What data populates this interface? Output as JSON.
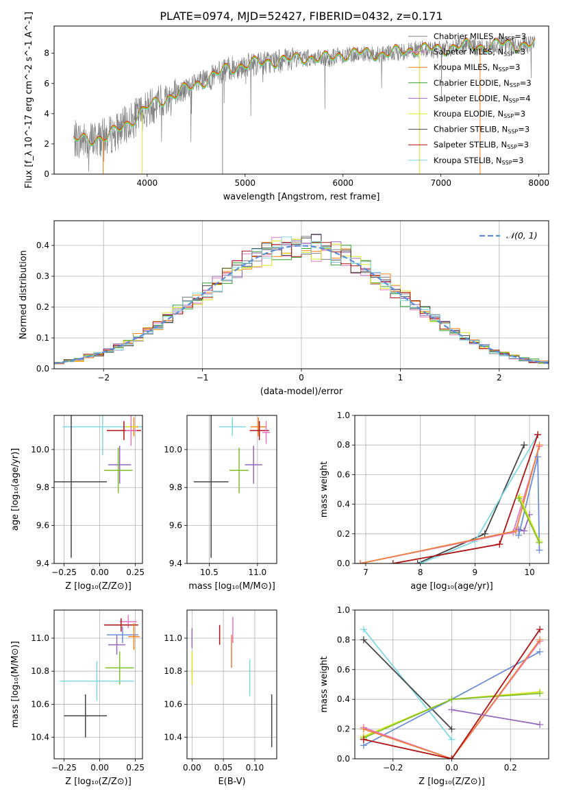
{
  "figure": {
    "title": "PLATE=0974, MJD=52427, FIBERID=0432, z=0.171"
  },
  "colors": {
    "chabrier_miles": "#808080",
    "salpeter_miles": "#e377c2",
    "kroupa_miles": "#ff7f0e",
    "chabrier_elodie": "#2ca02c",
    "salpeter_elodie": "#9467bd",
    "kroupa_elodie": "#dbe31c",
    "chabrier_stelib": "#444444",
    "salpeter_stelib": "#b01010",
    "kroupa_stelib": "#7fd8e0",
    "blue_model": "#6b8dd6",
    "green_model": "#7fbf2a",
    "orange_model": "#f07f3a"
  },
  "chart_data": [
    {
      "type": "line",
      "id": "spectrum",
      "xlabel": "wavelength [Angstrom, rest frame]",
      "ylabel": "Flux [f_λ 10^-17 erg cm^-2 s^-1 A^-1]",
      "xlim": [
        3050,
        8100
      ],
      "ylim": [
        0,
        9.8
      ],
      "xticks": [
        4000,
        5000,
        6000,
        7000,
        8000
      ],
      "yticks": [
        0,
        2,
        4,
        6,
        8
      ],
      "legend_position": "top-right",
      "legend": [
        {
          "label": "Chabrier MILES, N",
          "sub": "SSP",
          "suffix": "=3",
          "color": "#808080"
        },
        {
          "label": "Salpeter MILES, N",
          "sub": "SSP",
          "suffix": "=3",
          "color": "#e377c2"
        },
        {
          "label": "Kroupa MILES, N",
          "sub": "SSP",
          "suffix": "=3",
          "color": "#ff7f0e"
        },
        {
          "label": "Chabrier ELODIE, N",
          "sub": "SSP",
          "suffix": "=3",
          "color": "#2ca02c"
        },
        {
          "label": "Salpeter ELODIE, N",
          "sub": "SSP",
          "suffix": "=4",
          "color": "#9467bd"
        },
        {
          "label": "Kroupa ELODIE, N",
          "sub": "SSP",
          "suffix": "=3",
          "color": "#dbe31c"
        },
        {
          "label": "Chabrier STELIB, N",
          "sub": "SSP",
          "suffix": "=3",
          "color": "#444444"
        },
        {
          "label": "Salpeter STELIB, N",
          "sub": "SSP",
          "suffix": "=3",
          "color": "#b01010"
        },
        {
          "label": "Kroupa STELIB, N",
          "sub": "SSP",
          "suffix": "=3",
          "color": "#7fd8e0"
        }
      ],
      "continuum": [
        [
          3250,
          2.3
        ],
        [
          3400,
          2.2
        ],
        [
          3600,
          2.5
        ],
        [
          3800,
          3.3
        ],
        [
          4000,
          4.4
        ],
        [
          4200,
          5.0
        ],
        [
          4400,
          5.6
        ],
        [
          4600,
          6.2
        ],
        [
          4800,
          6.9
        ],
        [
          5000,
          7.2
        ],
        [
          5200,
          7.4
        ],
        [
          5400,
          7.5
        ],
        [
          5600,
          7.7
        ],
        [
          5800,
          7.6
        ],
        [
          6000,
          7.9
        ],
        [
          6200,
          8.0
        ],
        [
          6400,
          7.9
        ],
        [
          6600,
          8.1
        ],
        [
          6800,
          8.3
        ],
        [
          7000,
          8.2
        ],
        [
          7200,
          8.5
        ],
        [
          7400,
          8.4
        ],
        [
          7600,
          8.6
        ],
        [
          7800,
          8.5
        ],
        [
          7960,
          8.6
        ]
      ]
    },
    {
      "type": "line",
      "id": "residuals",
      "xlabel": "(data-model)/error",
      "ylabel": "Normed distribution",
      "xlim": [
        -2.5,
        2.5
      ],
      "ylim": [
        0,
        0.48
      ],
      "xticks": [
        -2,
        -1,
        0,
        1,
        2
      ],
      "yticks": [
        0.0,
        0.1,
        0.2,
        0.3,
        0.4
      ],
      "legend_label": "𝒩(0, 1)",
      "legend_position": "top-right",
      "gaussian": {
        "mean": 0,
        "sigma": 1
      }
    },
    {
      "type": "scatter",
      "id": "age_vs_Z",
      "xlabel": "Z [log₁₀(Z/Z⊙)]",
      "ylabel": "age  [log₁₀(age/yr)]",
      "xlim": [
        -0.32,
        0.3
      ],
      "ylim": [
        9.4,
        10.18
      ],
      "xticks": [
        -0.25,
        0.0,
        0.25
      ],
      "xticklabels": [
        "−0.25",
        "0.00",
        "0.25"
      ],
      "yticks": [
        9.4,
        9.6,
        9.8,
        10.0
      ],
      "points": [
        {
          "x": 0.02,
          "y": 10.12,
          "xerr": 0.28,
          "yerr": 0.15,
          "color": "#7fd8e0"
        },
        {
          "x": 0.24,
          "y": 10.12,
          "xerr": 0.03,
          "yerr": 0.05,
          "color": "#ff7f0e"
        },
        {
          "x": 0.22,
          "y": 10.12,
          "xerr": 0.04,
          "yerr": 0.04,
          "color": "#dbe31c"
        },
        {
          "x": 0.17,
          "y": 10.1,
          "xerr": 0.12,
          "yerr": 0.05,
          "color": "#b01010"
        },
        {
          "x": 0.22,
          "y": 10.1,
          "xerr": 0.04,
          "yerr": 0.08,
          "color": "#e377c2"
        },
        {
          "x": 0.14,
          "y": 9.92,
          "xerr": 0.08,
          "yerr": 0.1,
          "color": "#9467bd"
        },
        {
          "x": 0.13,
          "y": 9.89,
          "xerr": 0.1,
          "yerr": 0.12,
          "color": "#7fbf2a"
        },
        {
          "x": -0.2,
          "y": 9.83,
          "xerr": 0.25,
          "yerr": 0.4,
          "color": "#444444"
        }
      ]
    },
    {
      "type": "scatter",
      "id": "age_vs_mass",
      "xlabel": "mass [log₁₀(M/M⊙)]",
      "ylabel": "",
      "xlim": [
        10.27,
        11.2
      ],
      "ylim": [
        9.4,
        10.18
      ],
      "xticks": [
        10.5,
        11.0
      ],
      "xticklabels": [
        "10.5",
        "11.0"
      ],
      "yticks": [
        9.4,
        9.6,
        9.8,
        10.0
      ],
      "points": [
        {
          "x": 10.74,
          "y": 10.12,
          "xerr": 0.14,
          "yerr": 0.05,
          "color": "#7fd8e0"
        },
        {
          "x": 11.01,
          "y": 10.12,
          "xerr": 0.08,
          "yerr": 0.05,
          "color": "#ff7f0e"
        },
        {
          "x": 11.02,
          "y": 10.1,
          "xerr": 0.1,
          "yerr": 0.05,
          "color": "#b01010"
        },
        {
          "x": 11.09,
          "y": 10.09,
          "xerr": 0.04,
          "yerr": 0.06,
          "color": "#e377c2"
        },
        {
          "x": 10.96,
          "y": 9.92,
          "xerr": 0.09,
          "yerr": 0.1,
          "color": "#9467bd"
        },
        {
          "x": 10.81,
          "y": 9.89,
          "xerr": 0.1,
          "yerr": 0.12,
          "color": "#7fbf2a"
        },
        {
          "x": 10.52,
          "y": 9.83,
          "xerr": 0.18,
          "yerr": 0.4,
          "color": "#444444"
        }
      ]
    },
    {
      "type": "line",
      "id": "massweight_vs_age",
      "xlabel": "age  [log₁₀(age/yr)]",
      "ylabel": "mass weight",
      "xlim": [
        6.8,
        10.35
      ],
      "ylim": [
        0,
        1.0
      ],
      "xticks": [
        7,
        8,
        9,
        10
      ],
      "yticks": [
        0.0,
        0.2,
        0.4,
        0.6,
        0.8,
        1.0
      ],
      "series": [
        {
          "color": "#444444",
          "x": [
            7.95,
            9.18,
            9.9
          ],
          "y": [
            0.0,
            0.2,
            0.8
          ]
        },
        {
          "color": "#7fd8e0",
          "x": [
            8.0,
            9.0,
            10.15
          ],
          "y": [
            0.0,
            0.15,
            0.87
          ]
        },
        {
          "color": "#b01010",
          "x": [
            7.5,
            9.45,
            10.15
          ],
          "y": [
            0.0,
            0.13,
            0.87
          ]
        },
        {
          "color": "#e377c2",
          "x": [
            6.9,
            9.7,
            10.18
          ],
          "y": [
            0.0,
            0.21,
            0.79
          ]
        },
        {
          "color": "#f07f3a",
          "x": [
            6.9,
            9.75,
            10.18
          ],
          "y": [
            0.0,
            0.22,
            0.8
          ]
        },
        {
          "color": "#9467bd",
          "x": [
            9.8,
            9.9,
            10.0
          ],
          "y": [
            0.23,
            0.22,
            0.33
          ]
        },
        {
          "color": "#6b8dd6",
          "x": [
            9.8,
            10.15,
            10.18
          ],
          "y": [
            0.19,
            0.72,
            0.09
          ]
        },
        {
          "color": "#dbe31c",
          "x": [
            9.82,
            10.18
          ],
          "y": [
            0.45,
            0.15
          ]
        },
        {
          "color": "#7fbf2a",
          "x": [
            9.8,
            10.18
          ],
          "y": [
            0.44,
            0.14
          ]
        }
      ]
    },
    {
      "type": "scatter",
      "id": "mass_vs_Z",
      "xlabel": "Z [log₁₀(Z/Z⊙)]",
      "ylabel": "mass [log₁₀(M/M⊙)]",
      "xlim": [
        -0.32,
        0.3
      ],
      "ylim": [
        10.27,
        11.17
      ],
      "xticks": [
        -0.25,
        0.0,
        0.25
      ],
      "xticklabels": [
        "−0.25",
        "0.00",
        "0.25"
      ],
      "yticks": [
        10.4,
        10.6,
        10.8,
        11.0
      ],
      "points": [
        {
          "x": 0.2,
          "y": 11.1,
          "xerr": 0.06,
          "yerr": 0.04,
          "color": "#e377c2"
        },
        {
          "x": 0.15,
          "y": 11.08,
          "xerr": 0.12,
          "yerr": 0.04,
          "color": "#b01010"
        },
        {
          "x": 0.16,
          "y": 11.02,
          "xerr": 0.11,
          "yerr": 0.05,
          "color": "#6b8dd6"
        },
        {
          "x": 0.24,
          "y": 11.01,
          "xerr": 0.04,
          "yerr": 0.08,
          "color": "#ff7f0e"
        },
        {
          "x": 0.12,
          "y": 10.96,
          "xerr": 0.06,
          "yerr": 0.06,
          "color": "#9467bd"
        },
        {
          "x": 0.14,
          "y": 10.82,
          "xerr": 0.1,
          "yerr": 0.1,
          "color": "#7fbf2a"
        },
        {
          "x": -0.02,
          "y": 10.74,
          "xerr": 0.26,
          "yerr": 0.12,
          "color": "#7fd8e0"
        },
        {
          "x": -0.1,
          "y": 10.53,
          "xerr": 0.15,
          "yerr": 0.13,
          "color": "#444444"
        }
      ]
    },
    {
      "type": "scatter",
      "id": "mass_vs_EBV",
      "xlabel": "E(B-V)",
      "ylabel": "",
      "xlim": [
        -0.008,
        0.135
      ],
      "ylim": [
        10.27,
        11.17
      ],
      "xticks": [
        0.0,
        0.05,
        0.1
      ],
      "xticklabels": [
        "0.00",
        "0.05",
        "0.10"
      ],
      "yticks": [
        10.4,
        10.6,
        10.8,
        11.0
      ],
      "points": [
        {
          "x": 0.0,
          "y": 11.0,
          "xerr": 0,
          "yerr": 0.06,
          "color": "#9467bd"
        },
        {
          "x": 0.044,
          "y": 11.02,
          "xerr": 0,
          "yerr": 0.06,
          "color": "#b01010"
        },
        {
          "x": 0.065,
          "y": 11.05,
          "xerr": 0,
          "yerr": 0.08,
          "color": "#e377c2"
        },
        {
          "x": 0.063,
          "y": 10.92,
          "xerr": 0,
          "yerr": 0.1,
          "color": "#f07f3a"
        },
        {
          "x": 0.0,
          "y": 10.82,
          "xerr": 0,
          "yerr": 0.1,
          "color": "#dbe31c"
        },
        {
          "x": 0.092,
          "y": 10.76,
          "xerr": 0,
          "yerr": 0.11,
          "color": "#7fd8e0"
        },
        {
          "x": 0.127,
          "y": 10.5,
          "xerr": 0,
          "yerr": 0.16,
          "color": "#444444"
        }
      ]
    },
    {
      "type": "line",
      "id": "massweight_vs_Z",
      "xlabel": "Z [log₁₀(Z/Z⊙)]",
      "ylabel": "mass weight",
      "xlim": [
        -0.33,
        0.33
      ],
      "ylim": [
        0,
        1.0
      ],
      "xticks": [
        -0.2,
        0.0,
        0.2
      ],
      "xticklabels": [
        "−0.2",
        "0.0",
        "0.2"
      ],
      "yticks": [
        0.0,
        0.2,
        0.4,
        0.6,
        0.8,
        1.0
      ],
      "series": [
        {
          "color": "#7fd8e0",
          "x": [
            -0.3,
            0.0
          ],
          "y": [
            0.87,
            0.13
          ]
        },
        {
          "color": "#444444",
          "x": [
            -0.3,
            0.0
          ],
          "y": [
            0.8,
            0.2
          ]
        },
        {
          "color": "#6b8dd6",
          "x": [
            -0.3,
            0.0,
            0.3
          ],
          "y": [
            0.09,
            0.4,
            0.72
          ]
        },
        {
          "color": "#dbe31c",
          "x": [
            -0.3,
            0.0,
            0.3
          ],
          "y": [
            0.15,
            0.4,
            0.45
          ]
        },
        {
          "color": "#7fbf2a",
          "x": [
            -0.3,
            0.0,
            0.3
          ],
          "y": [
            0.14,
            0.4,
            0.44
          ]
        },
        {
          "color": "#e377c2",
          "x": [
            -0.3,
            0.0,
            0.3
          ],
          "y": [
            0.21,
            0.0,
            0.79
          ]
        },
        {
          "color": "#f07f3a",
          "x": [
            -0.3,
            0.0,
            0.3
          ],
          "y": [
            0.2,
            0.0,
            0.8
          ]
        },
        {
          "color": "#b01010",
          "x": [
            -0.3,
            0.0,
            0.3
          ],
          "y": [
            0.13,
            0.0,
            0.87
          ]
        },
        {
          "color": "#9467bd",
          "x": [
            0.0,
            0.3
          ],
          "y": [
            0.33,
            0.23
          ]
        }
      ]
    }
  ]
}
